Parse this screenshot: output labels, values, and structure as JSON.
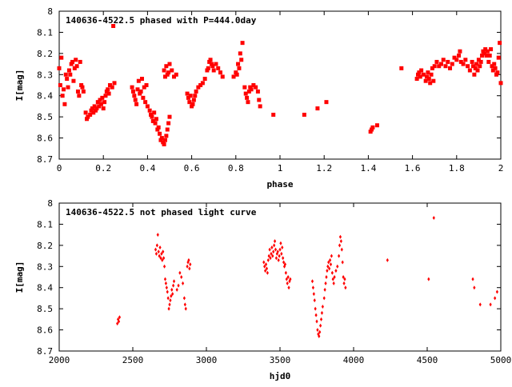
{
  "colors": {
    "points": "#ff0000",
    "axes": "#000000",
    "background": "#ffffff"
  },
  "chart_data": [
    {
      "type": "scatter",
      "title": "140636-4522.5 phased with P=444.0day",
      "xlabel": "phase",
      "ylabel": "I[mag]",
      "xlim": [
        0,
        2
      ],
      "ylim": [
        8.7,
        8
      ],
      "y_inverted": true,
      "grid": false,
      "marker": "square",
      "xticks": [
        "0",
        "0.2",
        "0.4",
        "0.6",
        "0.8",
        "1",
        "1.2",
        "1.4",
        "1.6",
        "1.8",
        "2"
      ],
      "yticks": [
        "8",
        "8.1",
        "8.2",
        "8.3",
        "8.4",
        "8.5",
        "8.6",
        "8.7"
      ],
      "points": [
        [
          0.0,
          8.27
        ],
        [
          0.005,
          8.35
        ],
        [
          0.01,
          8.22
        ],
        [
          0.015,
          8.4
        ],
        [
          0.02,
          8.37
        ],
        [
          0.025,
          8.44
        ],
        [
          0.03,
          8.3
        ],
        [
          0.035,
          8.32
        ],
        [
          0.04,
          8.36
        ],
        [
          0.045,
          8.28
        ],
        [
          0.05,
          8.3
        ],
        [
          0.055,
          8.25
        ],
        [
          0.06,
          8.24
        ],
        [
          0.065,
          8.33
        ],
        [
          0.07,
          8.27
        ],
        [
          0.075,
          8.23
        ],
        [
          0.08,
          8.26
        ],
        [
          0.085,
          8.38
        ],
        [
          0.09,
          8.4
        ],
        [
          0.095,
          8.24
        ],
        [
          0.1,
          8.35
        ],
        [
          0.105,
          8.36
        ],
        [
          0.11,
          8.38
        ],
        [
          0.12,
          8.48
        ],
        [
          0.125,
          8.51
        ],
        [
          0.13,
          8.5
        ],
        [
          0.14,
          8.49
        ],
        [
          0.145,
          8.47
        ],
        [
          0.15,
          8.46
        ],
        [
          0.155,
          8.48
        ],
        [
          0.16,
          8.45
        ],
        [
          0.165,
          8.47
        ],
        [
          0.17,
          8.46
        ],
        [
          0.175,
          8.43
        ],
        [
          0.18,
          8.45
        ],
        [
          0.185,
          8.42
        ],
        [
          0.19,
          8.44
        ],
        [
          0.195,
          8.41
        ],
        [
          0.2,
          8.46
        ],
        [
          0.205,
          8.43
        ],
        [
          0.21,
          8.4
        ],
        [
          0.215,
          8.38
        ],
        [
          0.22,
          8.37
        ],
        [
          0.225,
          8.39
        ],
        [
          0.23,
          8.35
        ],
        [
          0.24,
          8.36
        ],
        [
          0.245,
          8.07
        ],
        [
          0.25,
          8.34
        ],
        [
          0.33,
          8.36
        ],
        [
          0.335,
          8.38
        ],
        [
          0.34,
          8.4
        ],
        [
          0.345,
          8.42
        ],
        [
          0.35,
          8.44
        ],
        [
          0.355,
          8.37
        ],
        [
          0.36,
          8.33
        ],
        [
          0.365,
          8.39
        ],
        [
          0.37,
          8.38
        ],
        [
          0.375,
          8.32
        ],
        [
          0.38,
          8.41
        ],
        [
          0.385,
          8.36
        ],
        [
          0.39,
          8.43
        ],
        [
          0.395,
          8.35
        ],
        [
          0.4,
          8.45
        ],
        [
          0.41,
          8.47
        ],
        [
          0.415,
          8.49
        ],
        [
          0.42,
          8.5
        ],
        [
          0.425,
          8.52
        ],
        [
          0.43,
          8.48
        ],
        [
          0.435,
          8.53
        ],
        [
          0.44,
          8.51
        ],
        [
          0.445,
          8.56
        ],
        [
          0.45,
          8.55
        ],
        [
          0.455,
          8.58
        ],
        [
          0.46,
          8.61
        ],
        [
          0.465,
          8.6
        ],
        [
          0.47,
          8.62
        ],
        [
          0.475,
          8.63
        ],
        [
          0.48,
          8.61
        ],
        [
          0.485,
          8.59
        ],
        [
          0.49,
          8.56
        ],
        [
          0.495,
          8.53
        ],
        [
          0.5,
          8.5
        ],
        [
          0.475,
          8.28
        ],
        [
          0.48,
          8.31
        ],
        [
          0.485,
          8.26
        ],
        [
          0.49,
          8.3
        ],
        [
          0.495,
          8.29
        ],
        [
          0.5,
          8.25
        ],
        [
          0.51,
          8.28
        ],
        [
          0.52,
          8.31
        ],
        [
          0.53,
          8.3
        ],
        [
          0.58,
          8.39
        ],
        [
          0.585,
          8.41
        ],
        [
          0.59,
          8.43
        ],
        [
          0.595,
          8.4
        ],
        [
          0.6,
          8.45
        ],
        [
          0.605,
          8.44
        ],
        [
          0.61,
          8.42
        ],
        [
          0.615,
          8.4
        ],
        [
          0.62,
          8.38
        ],
        [
          0.63,
          8.36
        ],
        [
          0.64,
          8.35
        ],
        [
          0.65,
          8.34
        ],
        [
          0.66,
          8.32
        ],
        [
          0.67,
          8.28
        ],
        [
          0.675,
          8.27
        ],
        [
          0.68,
          8.24
        ],
        [
          0.685,
          8.23
        ],
        [
          0.69,
          8.25
        ],
        [
          0.695,
          8.26
        ],
        [
          0.7,
          8.28
        ],
        [
          0.71,
          8.25
        ],
        [
          0.72,
          8.27
        ],
        [
          0.73,
          8.29
        ],
        [
          0.74,
          8.31
        ],
        [
          0.79,
          8.31
        ],
        [
          0.8,
          8.29
        ],
        [
          0.805,
          8.3
        ],
        [
          0.81,
          8.25
        ],
        [
          0.815,
          8.27
        ],
        [
          0.82,
          8.2
        ],
        [
          0.825,
          8.23
        ],
        [
          0.83,
          8.15
        ],
        [
          0.84,
          8.36
        ],
        [
          0.845,
          8.39
        ],
        [
          0.85,
          8.41
        ],
        [
          0.855,
          8.43
        ],
        [
          0.86,
          8.38
        ],
        [
          0.865,
          8.36
        ],
        [
          0.87,
          8.37
        ],
        [
          0.88,
          8.35
        ],
        [
          0.89,
          8.36
        ],
        [
          0.9,
          8.38
        ],
        [
          0.905,
          8.42
        ],
        [
          0.91,
          8.45
        ],
        [
          0.97,
          8.49
        ],
        [
          1.11,
          8.49
        ],
        [
          1.17,
          8.46
        ],
        [
          1.21,
          8.43
        ],
        [
          1.41,
          8.57
        ],
        [
          1.415,
          8.56
        ],
        [
          1.42,
          8.55
        ],
        [
          1.44,
          8.54
        ],
        [
          1.55,
          8.27
        ],
        [
          1.62,
          8.32
        ],
        [
          1.625,
          8.3
        ],
        [
          1.63,
          8.29
        ],
        [
          1.635,
          8.31
        ],
        [
          1.64,
          8.28
        ],
        [
          1.65,
          8.3
        ],
        [
          1.66,
          8.33
        ],
        [
          1.665,
          8.31
        ],
        [
          1.67,
          8.29
        ],
        [
          1.675,
          8.32
        ],
        [
          1.68,
          8.34
        ],
        [
          1.685,
          8.3
        ],
        [
          1.69,
          8.27
        ],
        [
          1.695,
          8.33
        ],
        [
          1.7,
          8.26
        ],
        [
          1.71,
          8.24
        ],
        [
          1.72,
          8.26
        ],
        [
          1.73,
          8.25
        ],
        [
          1.74,
          8.23
        ],
        [
          1.75,
          8.26
        ],
        [
          1.76,
          8.24
        ],
        [
          1.77,
          8.27
        ],
        [
          1.78,
          8.25
        ],
        [
          1.79,
          8.22
        ],
        [
          1.8,
          8.23
        ],
        [
          1.81,
          8.21
        ],
        [
          1.815,
          8.19
        ],
        [
          1.82,
          8.24
        ],
        [
          1.83,
          8.25
        ],
        [
          1.84,
          8.23
        ],
        [
          1.85,
          8.26
        ],
        [
          1.86,
          8.28
        ],
        [
          1.87,
          8.24
        ],
        [
          1.875,
          8.26
        ],
        [
          1.88,
          8.3
        ],
        [
          1.885,
          8.27
        ],
        [
          1.89,
          8.25
        ],
        [
          1.895,
          8.28
        ],
        [
          1.9,
          8.23
        ],
        [
          1.905,
          8.26
        ],
        [
          1.91,
          8.24
        ],
        [
          1.915,
          8.21
        ],
        [
          1.92,
          8.19
        ],
        [
          1.925,
          8.2
        ],
        [
          1.93,
          8.18
        ],
        [
          1.935,
          8.21
        ],
        [
          1.94,
          8.19
        ],
        [
          1.945,
          8.24
        ],
        [
          1.95,
          8.21
        ],
        [
          1.955,
          8.18
        ],
        [
          1.96,
          8.26
        ],
        [
          1.965,
          8.28
        ],
        [
          1.97,
          8.25
        ],
        [
          1.975,
          8.27
        ],
        [
          1.98,
          8.3
        ],
        [
          1.985,
          8.29
        ],
        [
          1.99,
          8.22
        ],
        [
          1.995,
          8.15
        ],
        [
          2.0,
          8.34
        ]
      ]
    },
    {
      "type": "scatter",
      "title": "140636-4522.5 not phased light curve",
      "xlabel": "hjd0",
      "ylabel": "I[mag]",
      "xlim": [
        2000,
        5000
      ],
      "ylim": [
        8.7,
        8
      ],
      "y_inverted": true,
      "grid": false,
      "marker": "diamond",
      "xticks": [
        "2000",
        "2500",
        "3000",
        "3500",
        "4000",
        "4500",
        "5000"
      ],
      "yticks": [
        "8",
        "8.1",
        "8.2",
        "8.3",
        "8.4",
        "8.5",
        "8.6",
        "8.7"
      ],
      "points": [
        [
          2395,
          8.57
        ],
        [
          2400,
          8.55
        ],
        [
          2405,
          8.56
        ],
        [
          2410,
          8.54
        ],
        [
          2655,
          8.22
        ],
        [
          2660,
          8.24
        ],
        [
          2665,
          8.2
        ],
        [
          2670,
          8.15
        ],
        [
          2675,
          8.23
        ],
        [
          2680,
          8.25
        ],
        [
          2685,
          8.21
        ],
        [
          2690,
          8.26
        ],
        [
          2695,
          8.24
        ],
        [
          2700,
          8.27
        ],
        [
          2705,
          8.23
        ],
        [
          2710,
          8.26
        ],
        [
          2715,
          8.3
        ],
        [
          2720,
          8.36
        ],
        [
          2725,
          8.38
        ],
        [
          2730,
          8.4
        ],
        [
          2735,
          8.42
        ],
        [
          2740,
          8.45
        ],
        [
          2745,
          8.5
        ],
        [
          2750,
          8.48
        ],
        [
          2755,
          8.46
        ],
        [
          2760,
          8.44
        ],
        [
          2765,
          8.41
        ],
        [
          2770,
          8.43
        ],
        [
          2775,
          8.39
        ],
        [
          2780,
          8.37
        ],
        [
          2800,
          8.41
        ],
        [
          2810,
          8.39
        ],
        [
          2820,
          8.33
        ],
        [
          2830,
          8.35
        ],
        [
          2840,
          8.38
        ],
        [
          2850,
          8.45
        ],
        [
          2855,
          8.48
        ],
        [
          2860,
          8.5
        ],
        [
          2870,
          8.3
        ],
        [
          2875,
          8.28
        ],
        [
          2880,
          8.27
        ],
        [
          2885,
          8.31
        ],
        [
          2890,
          8.29
        ],
        [
          3390,
          8.28
        ],
        [
          3395,
          8.3
        ],
        [
          3400,
          8.32
        ],
        [
          3405,
          8.29
        ],
        [
          3410,
          8.31
        ],
        [
          3415,
          8.33
        ],
        [
          3420,
          8.27
        ],
        [
          3425,
          8.25
        ],
        [
          3430,
          8.22
        ],
        [
          3435,
          8.26
        ],
        [
          3440,
          8.24
        ],
        [
          3445,
          8.21
        ],
        [
          3450,
          8.25
        ],
        [
          3455,
          8.23
        ],
        [
          3460,
          8.2
        ],
        [
          3465,
          8.18
        ],
        [
          3470,
          8.22
        ],
        [
          3475,
          8.26
        ],
        [
          3480,
          8.24
        ],
        [
          3485,
          8.23
        ],
        [
          3490,
          8.27
        ],
        [
          3495,
          8.25
        ],
        [
          3500,
          8.22
        ],
        [
          3505,
          8.19
        ],
        [
          3510,
          8.24
        ],
        [
          3515,
          8.21
        ],
        [
          3520,
          8.26
        ],
        [
          3525,
          8.28
        ],
        [
          3530,
          8.3
        ],
        [
          3535,
          8.29
        ],
        [
          3540,
          8.33
        ],
        [
          3545,
          8.36
        ],
        [
          3550,
          8.38
        ],
        [
          3555,
          8.35
        ],
        [
          3560,
          8.4
        ],
        [
          3565,
          8.37
        ],
        [
          3570,
          8.36
        ],
        [
          3720,
          8.37
        ],
        [
          3725,
          8.4
        ],
        [
          3730,
          8.43
        ],
        [
          3735,
          8.46
        ],
        [
          3740,
          8.5
        ],
        [
          3745,
          8.53
        ],
        [
          3750,
          8.56
        ],
        [
          3755,
          8.6
        ],
        [
          3760,
          8.62
        ],
        [
          3765,
          8.63
        ],
        [
          3770,
          8.61
        ],
        [
          3775,
          8.58
        ],
        [
          3780,
          8.55
        ],
        [
          3785,
          8.52
        ],
        [
          3790,
          8.49
        ],
        [
          3800,
          8.45
        ],
        [
          3805,
          8.41
        ],
        [
          3810,
          8.38
        ],
        [
          3815,
          8.35
        ],
        [
          3820,
          8.32
        ],
        [
          3825,
          8.3
        ],
        [
          3830,
          8.28
        ],
        [
          3835,
          8.31
        ],
        [
          3840,
          8.27
        ],
        [
          3845,
          8.29
        ],
        [
          3850,
          8.25
        ],
        [
          3855,
          8.33
        ],
        [
          3860,
          8.36
        ],
        [
          3865,
          8.38
        ],
        [
          3870,
          8.35
        ],
        [
          3880,
          8.32
        ],
        [
          3890,
          8.3
        ],
        [
          3900,
          8.25
        ],
        [
          3905,
          8.2
        ],
        [
          3910,
          8.16
        ],
        [
          3915,
          8.18
        ],
        [
          3920,
          8.22
        ],
        [
          3925,
          8.28
        ],
        [
          3930,
          8.35
        ],
        [
          3935,
          8.38
        ],
        [
          3940,
          8.36
        ],
        [
          3945,
          8.4
        ],
        [
          4230,
          8.27
        ],
        [
          4510,
          8.36
        ],
        [
          4545,
          8.07
        ],
        [
          4810,
          8.36
        ],
        [
          4820,
          8.4
        ],
        [
          4860,
          8.48
        ],
        [
          4930,
          8.48
        ],
        [
          4960,
          8.45
        ],
        [
          4975,
          8.42
        ]
      ]
    }
  ]
}
